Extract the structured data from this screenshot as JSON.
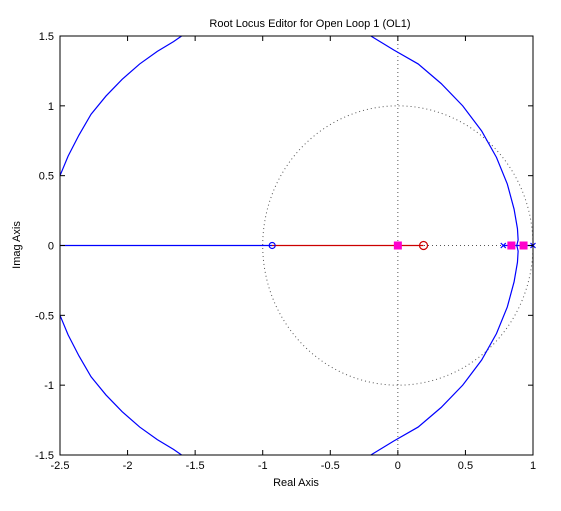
{
  "chart_data": {
    "type": "line",
    "title": "Root Locus Editor for Open Loop 1 (OL1)",
    "xlabel": "Real Axis",
    "ylabel": "Imag Axis",
    "xlim": [
      -2.5,
      1
    ],
    "ylim": [
      -1.5,
      1.5
    ],
    "xticks": [
      -2.5,
      -2,
      -1.5,
      -1,
      -0.5,
      0,
      0.5,
      1
    ],
    "yticks": [
      -1.5,
      -1,
      -0.5,
      0,
      0.5,
      1,
      1.5
    ],
    "xtick_labels": [
      "-2.5",
      "-2",
      "-1.5",
      "-1",
      "-0.5",
      "0",
      "0.5",
      "1"
    ],
    "ytick_labels": [
      "-1.5",
      "-1",
      "-0.5",
      "0",
      "0.5",
      "1",
      "1.5"
    ],
    "grid": false,
    "unit_circle": {
      "radius": 1,
      "style": "dotted",
      "color": "#555555"
    },
    "axis_lines": {
      "style": "dotted",
      "color": "#555555"
    },
    "locus_color": "#0000ff",
    "loci": [
      {
        "x": [
          -2.5,
          -0.93
        ],
        "y": [
          0,
          0
        ]
      },
      {
        "x": [
          -0.93,
          0.19
        ],
        "y": [
          0,
          0
        ],
        "color": "#cc0000"
      },
      {
        "x": [
          0.78,
          1.0
        ],
        "y": [
          0,
          0
        ]
      },
      {
        "x": [
          -2.5,
          -2.44,
          -2.36,
          -2.27,
          -2.16,
          -2.04,
          -1.91,
          -1.78,
          -1.66,
          -1.6
        ],
        "y": [
          0.5,
          0.64,
          0.79,
          0.94,
          1.07,
          1.19,
          1.3,
          1.39,
          1.46,
          1.5
        ]
      },
      {
        "x": [
          -2.5,
          -2.44,
          -2.36,
          -2.27,
          -2.16,
          -2.04,
          -1.91,
          -1.78,
          -1.66,
          -1.6
        ],
        "y": [
          -0.5,
          -0.64,
          -0.79,
          -0.94,
          -1.07,
          -1.19,
          -1.3,
          -1.39,
          -1.46,
          -1.5
        ]
      },
      {
        "x": [
          -0.2,
          -0.03,
          0.15,
          0.32,
          0.48,
          0.62,
          0.73,
          0.81,
          0.86,
          0.885,
          0.89,
          0.88
        ],
        "y": [
          1.5,
          1.4,
          1.3,
          1.16,
          1.0,
          0.82,
          0.63,
          0.44,
          0.26,
          0.12,
          0.04,
          0.0
        ]
      },
      {
        "x": [
          -0.2,
          -0.03,
          0.15,
          0.32,
          0.48,
          0.62,
          0.73,
          0.81,
          0.86,
          0.885,
          0.89,
          0.88
        ],
        "y": [
          -1.5,
          -1.4,
          -1.3,
          -1.16,
          -1.0,
          -0.82,
          -0.63,
          -0.44,
          -0.26,
          -0.12,
          -0.04,
          0.0
        ]
      }
    ],
    "zeros": [
      {
        "x": -0.93,
        "y": 0,
        "color": "#0000ff"
      },
      {
        "x": 0.19,
        "y": 0,
        "color": "#cc0000"
      }
    ],
    "poles": [
      {
        "x": 0.78,
        "y": 0,
        "color": "#0000ff"
      },
      {
        "x": 1.0,
        "y": 0,
        "color": "#0000ff"
      }
    ],
    "closed_loop_poles": [
      {
        "x": 0.0,
        "y": 0,
        "color": "#ff00cc"
      },
      {
        "x": 0.84,
        "y": 0,
        "color": "#ff00cc"
      },
      {
        "x": 0.93,
        "y": 0,
        "color": "#ff00cc"
      }
    ]
  }
}
